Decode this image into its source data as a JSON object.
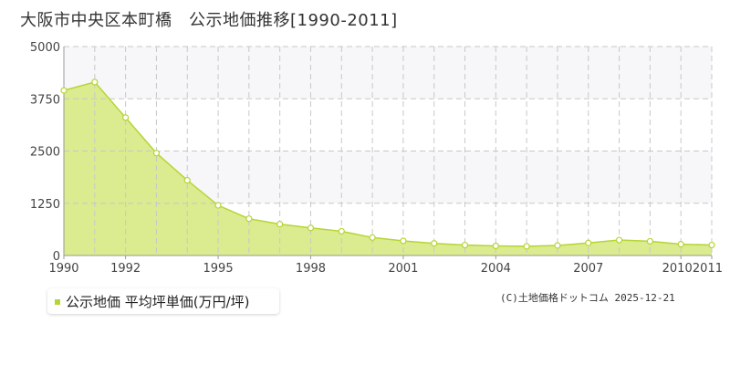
{
  "title": "大阪市中央区本町橋　公示地価推移[1990-2011]",
  "legend_label": "公示地価 平均坪単価(万円/坪)",
  "credit": "(C)土地価格ドットコム 2025-12-21",
  "colors": {
    "area_fill": "#dbeb90",
    "line": "#b5d534",
    "point_fill": "#ffffff",
    "band": "#f7f6f8",
    "grid": "#c8c8c8",
    "axis": "#999999"
  },
  "chart_data": {
    "type": "area",
    "title": "大阪市中央区本町橋　公示地価推移[1990-2011]",
    "xlabel": "",
    "ylabel": "",
    "xlim": [
      1990,
      2011
    ],
    "ylim": [
      0,
      5000
    ],
    "yticks": [
      0,
      1250,
      2500,
      3750,
      5000
    ],
    "ytick_labels": [
      "0",
      "1250",
      "2500",
      "3750",
      "5000"
    ],
    "xtick_labels": [
      "1990",
      "1992",
      "1995",
      "1998",
      "2001",
      "2004",
      "2007",
      "2010",
      "2011"
    ],
    "xtick_positions": [
      1990,
      1992,
      1995,
      1998,
      2001,
      2004,
      2007,
      2010,
      2011
    ],
    "grid": true,
    "legend_position": "bottom-left",
    "series": [
      {
        "name": "公示地価 平均坪単価(万円/坪)",
        "x": [
          1990,
          1991,
          1992,
          1993,
          1994,
          1995,
          1996,
          1997,
          1998,
          1999,
          2000,
          2001,
          2002,
          2003,
          2004,
          2005,
          2006,
          2007,
          2008,
          2009,
          2010,
          2011
        ],
        "y": [
          3950,
          4150,
          3300,
          2450,
          1800,
          1200,
          880,
          750,
          660,
          580,
          430,
          350,
          290,
          250,
          230,
          220,
          240,
          300,
          370,
          340,
          270,
          250
        ]
      }
    ]
  }
}
